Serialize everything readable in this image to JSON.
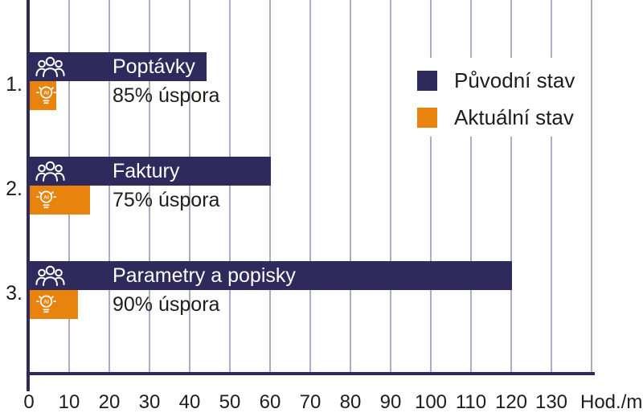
{
  "chart_data": {
    "type": "bar",
    "orientation": "horizontal",
    "title": "",
    "xlabel": "Hod./m",
    "ylabel": "",
    "xlim": [
      0,
      140
    ],
    "gridline_step": 10,
    "grid": true,
    "x_ticks": [
      0,
      10,
      20,
      30,
      40,
      50,
      60,
      70,
      80,
      90,
      100,
      110,
      120,
      130
    ],
    "unit_label": "Hod./m",
    "categories": [
      "Poptávky",
      "Faktury",
      "Parametry a popisky"
    ],
    "series": [
      {
        "name": "Původní stav",
        "color": "#2f2a5c",
        "values": [
          44,
          60,
          120
        ]
      },
      {
        "name": "Aktuální stav",
        "color": "#e8840e",
        "values": [
          6.6,
          15,
          12
        ]
      }
    ],
    "rows": [
      {
        "index_label": "1.",
        "label": "Poptávky",
        "saving_label": "85% úspora",
        "original": 44,
        "actual": 6.6
      },
      {
        "index_label": "2.",
        "label": "Faktury",
        "saving_label": "75% úspora",
        "original": 60,
        "actual": 15
      },
      {
        "index_label": "3.",
        "label": "Parametry a popisky",
        "saving_label": "90% úspora",
        "original": 120,
        "actual": 12
      }
    ],
    "legend_position": "top-right"
  },
  "legend": {
    "original_label": "Původní stav",
    "actual_label": "Aktuální stav"
  },
  "icons": {
    "original_bar_icon": "people-group-icon",
    "actual_bar_icon": "ai-lightbulb-icon"
  },
  "colors": {
    "navy": "#2f2a5c",
    "orange": "#e8840e",
    "gridline": "#aeacc2",
    "text": "#1d1d1b",
    "bar_text": "#ffffff",
    "background": "#ffffff"
  }
}
